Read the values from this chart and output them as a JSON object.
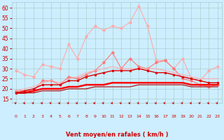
{
  "x": [
    0,
    1,
    2,
    3,
    4,
    5,
    6,
    7,
    8,
    9,
    10,
    11,
    12,
    13,
    14,
    15,
    16,
    17,
    18,
    19,
    20,
    21,
    22,
    23
  ],
  "series": [
    {
      "name": "rafales_max",
      "color": "#ffaaaa",
      "linewidth": 0.8,
      "markersize": 2.5,
      "marker": "o",
      "y": [
        29,
        27,
        26,
        32,
        31,
        30,
        42,
        35,
        46,
        51,
        49,
        51,
        50,
        53,
        61,
        51,
        34,
        34,
        30,
        35,
        25,
        24,
        29,
        31
      ]
    },
    {
      "name": "rafales_moy",
      "color": "#ff7777",
      "linewidth": 0.8,
      "markersize": 2.5,
      "marker": "o",
      "y": [
        19,
        19,
        19,
        24,
        24,
        22,
        26,
        25,
        27,
        29,
        33,
        38,
        30,
        35,
        31,
        30,
        33,
        34,
        30,
        25,
        24,
        22,
        21,
        22
      ]
    },
    {
      "name": "vent_max_line",
      "color": "#ffaaaa",
      "linewidth": 0.8,
      "markersize": 0,
      "marker": "None",
      "y": [
        19,
        20,
        21,
        23,
        24,
        23,
        25,
        26,
        28,
        29,
        30,
        31,
        30,
        30,
        30,
        30,
        30,
        29,
        28,
        27,
        26,
        25,
        25,
        25
      ]
    },
    {
      "name": "vent_max",
      "color": "#dd0000",
      "linewidth": 1.0,
      "markersize": 2.0,
      "marker": "o",
      "y": [
        18,
        19,
        20,
        22,
        22,
        22,
        24,
        24,
        26,
        27,
        28,
        29,
        29,
        29,
        30,
        29,
        28,
        28,
        27,
        26,
        25,
        24,
        23,
        23
      ]
    },
    {
      "name": "vent_moy",
      "color": "#ff0000",
      "linewidth": 1.8,
      "markersize": 0,
      "marker": "None",
      "y": [
        18,
        18,
        19,
        20,
        20,
        20,
        21,
        21,
        22,
        22,
        22,
        23,
        23,
        23,
        23,
        23,
        23,
        23,
        23,
        23,
        22,
        22,
        22,
        22
      ]
    },
    {
      "name": "vent_min",
      "color": "#aa0000",
      "linewidth": 0.8,
      "markersize": 0,
      "marker": "None",
      "y": [
        18,
        18,
        18,
        19,
        19,
        19,
        20,
        20,
        20,
        21,
        21,
        21,
        21,
        21,
        22,
        22,
        22,
        22,
        22,
        22,
        21,
        21,
        21,
        21
      ]
    }
  ],
  "xlabel": "Vent moyen/en rafales ( km/h )",
  "ylim": [
    13,
    63
  ],
  "xlim": [
    -0.5,
    23.5
  ],
  "yticks": [
    15,
    20,
    25,
    30,
    35,
    40,
    45,
    50,
    55,
    60
  ],
  "xticks": [
    0,
    1,
    2,
    3,
    4,
    5,
    6,
    7,
    8,
    9,
    10,
    11,
    12,
    13,
    14,
    15,
    16,
    17,
    18,
    19,
    20,
    21,
    22,
    23
  ],
  "bg_color": "#cceeff",
  "grid_color": "#aacccc",
  "tick_color": "#cc0000",
  "label_color": "#cc0000"
}
